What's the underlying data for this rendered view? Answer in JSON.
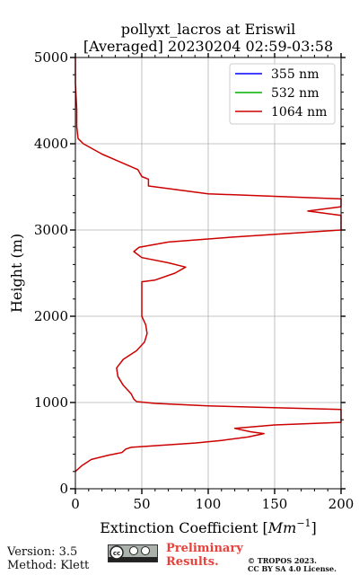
{
  "chart_data": {
    "type": "line",
    "title_line1": "pollyxt_lacros at Eriswil",
    "title_line2": "[Averaged] 20230204 02:59-03:58",
    "xlabel_prefix": "Extinction Coefficient ",
    "xlabel_unit_base": "Mm",
    "xlabel_unit_exp": "−1",
    "ylabel": "Height (m)",
    "xlim": [
      0,
      200
    ],
    "ylim": [
      0,
      5000
    ],
    "xticks": [
      0,
      50,
      100,
      150,
      200
    ],
    "yticks": [
      0,
      1000,
      2000,
      3000,
      4000,
      5000
    ],
    "grid": true,
    "legend_position": "top-right",
    "series": [
      {
        "name": "355 nm",
        "color": "#0000ff",
        "points": []
      },
      {
        "name": "532 nm",
        "color": "#00b000",
        "points": []
      },
      {
        "name": "1064 nm",
        "color": "#cc0000",
        "points": [
          [
            0,
            200
          ],
          [
            5,
            270
          ],
          [
            12,
            340
          ],
          [
            25,
            390
          ],
          [
            35,
            420
          ],
          [
            38,
            460
          ],
          [
            42,
            480
          ],
          [
            90,
            530
          ],
          [
            110,
            560
          ],
          [
            130,
            600
          ],
          [
            142,
            640
          ],
          [
            132,
            660
          ],
          [
            120,
            700
          ],
          [
            150,
            740
          ],
          [
            200,
            770
          ],
          [
            200,
            920
          ],
          [
            100,
            960
          ],
          [
            60,
            990
          ],
          [
            46,
            1010
          ],
          [
            44,
            1040
          ],
          [
            42,
            1100
          ],
          [
            36,
            1200
          ],
          [
            32,
            1300
          ],
          [
            31,
            1400
          ],
          [
            36,
            1500
          ],
          [
            46,
            1600
          ],
          [
            52,
            1700
          ],
          [
            54,
            1800
          ],
          [
            53,
            1900
          ],
          [
            50,
            2000
          ],
          [
            50,
            2200
          ],
          [
            50,
            2400
          ],
          [
            60,
            2420
          ],
          [
            75,
            2500
          ],
          [
            83,
            2570
          ],
          [
            70,
            2620
          ],
          [
            50,
            2680
          ],
          [
            44,
            2750
          ],
          [
            48,
            2800
          ],
          [
            70,
            2860
          ],
          [
            120,
            2920
          ],
          [
            200,
            3000
          ],
          [
            200,
            3170
          ],
          [
            175,
            3220
          ],
          [
            200,
            3270
          ],
          [
            200,
            3360
          ],
          [
            100,
            3420
          ],
          [
            55,
            3510
          ],
          [
            55,
            3590
          ],
          [
            50,
            3620
          ],
          [
            47,
            3700
          ],
          [
            32,
            3800
          ],
          [
            20,
            3880
          ],
          [
            6,
            4000
          ],
          [
            2,
            4060
          ],
          [
            1,
            4200
          ],
          [
            1,
            4400
          ],
          [
            0,
            4700
          ],
          [
            0,
            5000
          ]
        ]
      }
    ]
  },
  "footer": {
    "version": "Version: 3.5",
    "method": "Method: Klett",
    "preliminary_line1": "Preliminary",
    "preliminary_line2": "Results.",
    "copyright_line1": "© TROPOS 2023.",
    "copyright_line2": "CC BY SA 4.0 License."
  }
}
